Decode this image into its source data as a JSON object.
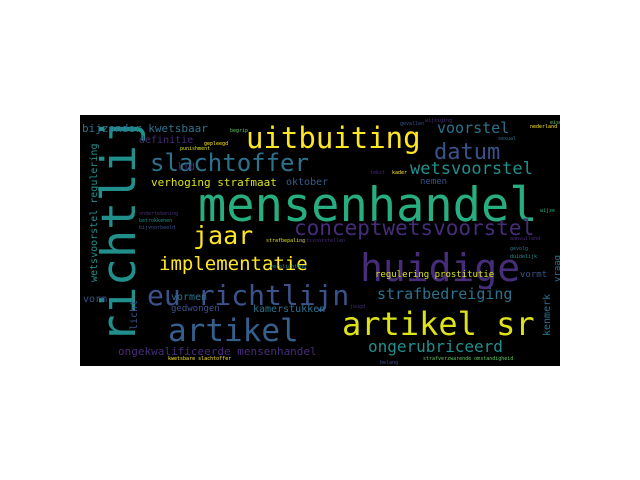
{
  "word_cloud": {
    "palette": {
      "purple": "#472c7a",
      "indigo": "#3b528b",
      "blue": "#355f8d",
      "teal": "#2c728e",
      "cyan": "#21908d",
      "green": "#27ad81",
      "lime": "#5ec962",
      "yellow": "#dde318",
      "yellow_bright": "#fde725"
    },
    "words": [
      {
        "id": "mensenhandel",
        "text": "mensenhandel"
      },
      {
        "id": "richtlijn",
        "text": "richtlijn"
      },
      {
        "id": "huidige",
        "text": "huidige"
      },
      {
        "id": "artikel-sr",
        "text": "artikel sr"
      },
      {
        "id": "uitbuiting",
        "text": "uitbuiting"
      },
      {
        "id": "eu-richtlijn",
        "text": "eu richtlijn"
      },
      {
        "id": "artikel",
        "text": "artikel"
      },
      {
        "id": "conceptwetsvoorstel",
        "text": "conceptwetsvoorstel"
      },
      {
        "id": "slachtoffer",
        "text": "slachtoffer"
      },
      {
        "id": "jaar",
        "text": "jaar"
      },
      {
        "id": "datum",
        "text": "datum"
      },
      {
        "id": "implementatie",
        "text": "implementatie"
      },
      {
        "id": "wetsvoorstel",
        "text": "wetsvoorstel"
      },
      {
        "id": "voorstel",
        "text": "voorstel"
      },
      {
        "id": "strafbedreiging",
        "text": "strafbedreiging"
      },
      {
        "id": "ongerubriceerd",
        "text": "ongerubriceerd"
      },
      {
        "id": "bijzonder-kwetsbaar",
        "text": "bijzonder kwetsbaar"
      },
      {
        "id": "verhoging-strafmaat",
        "text": "verhoging strafmaat"
      },
      {
        "id": "ongekwalificeerde-mensenhandel",
        "text": "ongekwalificeerde mensenhandel"
      },
      {
        "id": "regulering-prostitutie",
        "text": "regulering prostitutie"
      },
      {
        "id": "wetsvoorstel-regulering",
        "text": "wetsvoorstel regulering"
      },
      {
        "id": "definitie",
        "text": "definitie"
      },
      {
        "id": "oktober",
        "text": "oktober"
      },
      {
        "id": "lid",
        "text": "lid"
      },
      {
        "id": "nemen",
        "text": "nemen"
      },
      {
        "id": "kamerstukken",
        "text": "kamerstukken"
      },
      {
        "id": "vormen",
        "text": "vormen"
      },
      {
        "id": "gedwongen",
        "text": "gedwongen"
      },
      {
        "id": "vorm",
        "text": "vorm"
      },
      {
        "id": "vormt",
        "text": "vormt"
      },
      {
        "id": "licht",
        "text": "licht"
      },
      {
        "id": "kenmerk",
        "text": "kenmerk"
      },
      {
        "id": "vraag",
        "text": "vraag"
      },
      {
        "id": "ondertekening",
        "text": "ondertekening"
      },
      {
        "id": "betrokkenen",
        "text": "betrokkenen"
      },
      {
        "id": "bijvoorbeeld",
        "text": "bijvoorbeeld"
      },
      {
        "id": "aanvullend",
        "text": "aanvullend"
      },
      {
        "id": "gevolg",
        "text": "gevolg"
      },
      {
        "id": "slachtoffer-small",
        "text": "kwetsbare slachtoffer"
      },
      {
        "id": "strafverzwarende",
        "text": "strafverzwarende omstandigheid"
      },
      {
        "id": "strafbepaling",
        "text": "strafbepaling"
      },
      {
        "id": "wetsvoorstellen",
        "text": "wetsvoorstellen"
      },
      {
        "id": "begrip",
        "text": "begrip"
      },
      {
        "id": "gepleegd",
        "text": "gepleegd"
      },
      {
        "id": "tekst",
        "text": "tekst"
      },
      {
        "id": "kader",
        "text": "kader"
      },
      {
        "id": "gevallen",
        "text": "gevallen"
      },
      {
        "id": "wijziging",
        "text": "wijziging"
      },
      {
        "id": "punishment",
        "text": "punishment"
      },
      {
        "id": "eisen",
        "text": "eisen"
      },
      {
        "id": "nederland",
        "text": "nederland"
      },
      {
        "id": "duidelijk",
        "text": "duidelijk"
      },
      {
        "id": "wijze",
        "text": "wijze"
      },
      {
        "id": "jeugd",
        "text": "jeugd"
      },
      {
        "id": "verplichting",
        "text": "verplichting"
      },
      {
        "id": "belang",
        "text": "belang"
      },
      {
        "id": "sexual",
        "text": "sexual"
      }
    ]
  }
}
